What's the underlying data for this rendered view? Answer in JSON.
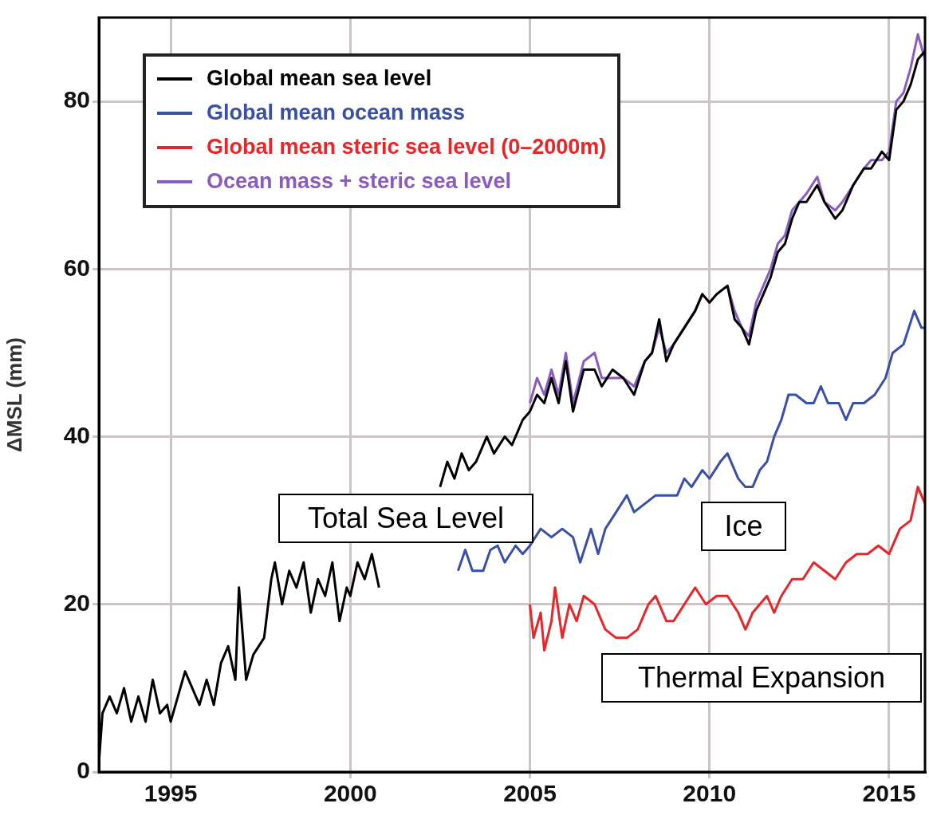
{
  "chart_data": {
    "type": "line",
    "ylabel": "ΔMSL (mm)",
    "xlim": [
      1993,
      2016
    ],
    "xticks": [
      1995,
      2000,
      2005,
      2010,
      2015
    ],
    "ylim": [
      0,
      90
    ],
    "yticks": [
      0,
      20,
      40,
      60,
      80
    ],
    "grid": true,
    "legend": "top left",
    "marker": "none",
    "series": [
      {
        "name": "Global mean sea level",
        "color": "#000000",
        "x": [
          1993.0,
          1993.1,
          1993.3,
          1993.5,
          1993.7,
          1993.9,
          1994.1,
          1994.3,
          1994.5,
          1994.7,
          1994.9,
          1995.0,
          1995.2,
          1995.4,
          1995.6,
          1995.8,
          1996.0,
          1996.2,
          1996.4,
          1996.6,
          1996.8,
          1996.9,
          1997.1,
          1997.3,
          1997.6,
          1997.8,
          1997.9,
          1998.1,
          1998.3,
          1998.5,
          1998.7,
          1998.9,
          1999.1,
          1999.3,
          1999.5,
          1999.7,
          1999.9,
          2000.0,
          2000.2,
          2000.4,
          2000.6,
          2000.8,
          2001.0,
          2001.2,
          2001.5,
          2001.8,
          2002.0,
          2002.2,
          2002.5,
          2002.7,
          2002.9,
          2003.1,
          2003.3,
          2003.5,
          2003.8,
          2004.0,
          2004.3,
          2004.5,
          2004.8,
          2005.0,
          2005.2,
          2005.4,
          2005.6,
          2005.8,
          2006.0,
          2006.2,
          2006.5,
          2006.8,
          2007.0,
          2007.3,
          2007.6,
          2007.9,
          2008.2,
          2008.4,
          2008.6,
          2008.8,
          2009.0,
          2009.3,
          2009.6,
          2009.8,
          2010.0,
          2010.2,
          2010.5,
          2010.7,
          2010.9,
          2011.1,
          2011.3,
          2011.5,
          2011.7,
          2011.9,
          2012.1,
          2012.3,
          2012.5,
          2012.7,
          2013.0,
          2013.2,
          2013.5,
          2013.7,
          2014.0,
          2014.3,
          2014.5,
          2014.8,
          2015.0,
          2015.2,
          2015.4,
          2015.6,
          2015.8,
          2016.0
        ],
        "values": [
          1,
          7,
          9,
          7,
          10,
          6,
          9,
          6,
          11,
          7,
          8,
          6,
          9,
          12,
          10,
          8,
          11,
          8,
          13,
          15,
          11,
          22,
          11,
          14,
          16,
          23,
          25,
          20,
          24,
          22,
          25,
          19,
          23,
          21,
          25,
          18,
          22,
          21,
          25,
          23,
          26,
          22,
          null,
          null,
          null,
          null,
          null,
          null,
          34,
          37,
          35,
          38,
          36,
          37,
          40,
          38,
          40,
          39,
          42,
          43,
          45,
          44,
          47,
          44,
          49,
          43,
          48,
          48,
          46,
          48,
          47,
          45,
          49,
          50,
          54,
          49,
          51,
          53,
          55,
          57,
          56,
          57,
          58,
          54,
          53,
          51,
          55,
          57,
          59,
          62,
          63,
          66,
          68,
          68,
          70,
          68,
          66,
          67,
          70,
          72,
          72,
          74,
          73,
          79,
          80,
          82,
          85,
          86
        ]
      },
      {
        "name": "Global mean ocean mass",
        "color": "#3a4fa8",
        "x": [
          2003.0,
          2003.2,
          2003.4,
          2003.7,
          2003.9,
          2004.1,
          2004.3,
          2004.6,
          2004.8,
          2005.0,
          2005.3,
          2005.6,
          2005.9,
          2006.2,
          2006.4,
          2006.7,
          2006.9,
          2007.1,
          2007.4,
          2007.7,
          2007.9,
          2008.2,
          2008.5,
          2008.8,
          2009.1,
          2009.3,
          2009.5,
          2009.8,
          2010.0,
          2010.3,
          2010.5,
          2010.8,
          2011.0,
          2011.2,
          2011.4,
          2011.6,
          2011.8,
          2012.0,
          2012.2,
          2012.4,
          2012.7,
          2012.9,
          2013.1,
          2013.3,
          2013.6,
          2013.8,
          2014.0,
          2014.3,
          2014.6,
          2014.9,
          2015.1,
          2015.4,
          2015.7,
          2015.9,
          2016.0
        ],
        "values": [
          24,
          26.5,
          24,
          24,
          26.5,
          27,
          25,
          27,
          26,
          27,
          29,
          28,
          29,
          28,
          25,
          29,
          26,
          29,
          31,
          33,
          31,
          32,
          33,
          33,
          33,
          35,
          34,
          36,
          35,
          37,
          38,
          35,
          34,
          34,
          36,
          37,
          40,
          42,
          45,
          45,
          44,
          44,
          46,
          44,
          44,
          42,
          44,
          44,
          45,
          47,
          50,
          51,
          55,
          53,
          53
        ]
      },
      {
        "name": "Global mean steric sea level (0–2000m)",
        "color": "#e8262a",
        "x": [
          2005.0,
          2005.1,
          2005.3,
          2005.4,
          2005.6,
          2005.7,
          2005.9,
          2006.1,
          2006.3,
          2006.5,
          2006.8,
          2007.1,
          2007.4,
          2007.7,
          2008.0,
          2008.3,
          2008.5,
          2008.8,
          2009.0,
          2009.3,
          2009.6,
          2009.9,
          2010.2,
          2010.5,
          2010.8,
          2011.0,
          2011.2,
          2011.4,
          2011.6,
          2011.8,
          2012.0,
          2012.3,
          2012.6,
          2012.9,
          2013.2,
          2013.5,
          2013.8,
          2014.1,
          2014.4,
          2014.7,
          2015.0,
          2015.3,
          2015.6,
          2015.8,
          2016.0
        ],
        "values": [
          20,
          16,
          19,
          14.5,
          18,
          22,
          16,
          20,
          18,
          21,
          20,
          17,
          16,
          16,
          17,
          20,
          21,
          18,
          18,
          20,
          22,
          20,
          21,
          21,
          19,
          17,
          19,
          20,
          21,
          19,
          21,
          23,
          23,
          25,
          24,
          23,
          25,
          26,
          26,
          27,
          26,
          29,
          30,
          34,
          32
        ]
      },
      {
        "name": "Ocean mass + steric sea level",
        "color": "#8a5cc0",
        "x": [
          2005.0,
          2005.2,
          2005.4,
          2005.6,
          2005.8,
          2006.0,
          2006.2,
          2006.5,
          2006.8,
          2007.0,
          2007.3,
          2007.6,
          2007.9,
          2008.2,
          2008.4,
          2008.6,
          2008.8,
          2009.0,
          2009.3,
          2009.6,
          2009.8,
          2010.0,
          2010.2,
          2010.5,
          2010.7,
          2010.9,
          2011.1,
          2011.3,
          2011.5,
          2011.7,
          2011.9,
          2012.1,
          2012.3,
          2012.5,
          2012.7,
          2013.0,
          2013.2,
          2013.5,
          2013.7,
          2014.0,
          2014.3,
          2014.5,
          2014.8,
          2015.0,
          2015.2,
          2015.4,
          2015.6,
          2015.8,
          2016.0
        ],
        "values": [
          44,
          47,
          45,
          48,
          45,
          50,
          44,
          49,
          50,
          47,
          47,
          47,
          46,
          49,
          50,
          53,
          50,
          51,
          53,
          55,
          57,
          56,
          57,
          58,
          55,
          53,
          52,
          56,
          58,
          60,
          63,
          64,
          67,
          68,
          69,
          71,
          68,
          67,
          68,
          70,
          72,
          73,
          73,
          74,
          80,
          81,
          84,
          88,
          85
        ]
      }
    ],
    "annotations": [
      "Total Sea Level",
      "Ice",
      "Thermal Expansion"
    ]
  }
}
